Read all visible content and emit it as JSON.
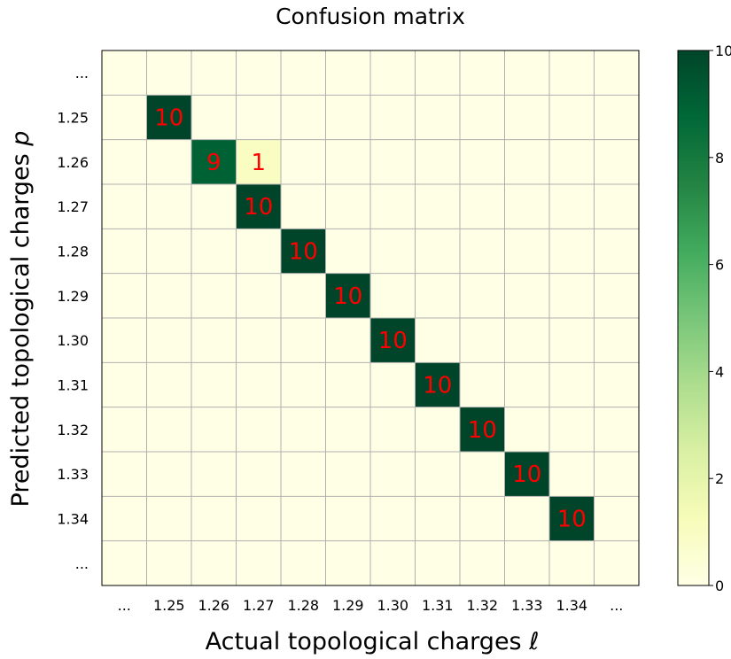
{
  "chart_data": {
    "type": "heatmap",
    "title": "Confusion matrix",
    "xlabel": "Actual topological charges",
    "xlabel_symbol": "ℓ",
    "ylabel": "Predicted topological charges",
    "ylabel_symbol": "p",
    "x_categories": [
      "...",
      "1.25",
      "1.26",
      "1.27",
      "1.28",
      "1.29",
      "1.30",
      "1.31",
      "1.32",
      "1.33",
      "1.34",
      "..."
    ],
    "y_categories": [
      "...",
      "1.25",
      "1.26",
      "1.27",
      "1.28",
      "1.29",
      "1.30",
      "1.31",
      "1.32",
      "1.33",
      "1.34",
      "..."
    ],
    "values": [
      [
        0,
        0,
        0,
        0,
        0,
        0,
        0,
        0,
        0,
        0,
        0,
        0
      ],
      [
        0,
        10,
        0,
        0,
        0,
        0,
        0,
        0,
        0,
        0,
        0,
        0
      ],
      [
        0,
        0,
        9,
        1,
        0,
        0,
        0,
        0,
        0,
        0,
        0,
        0
      ],
      [
        0,
        0,
        0,
        10,
        0,
        0,
        0,
        0,
        0,
        0,
        0,
        0
      ],
      [
        0,
        0,
        0,
        0,
        10,
        0,
        0,
        0,
        0,
        0,
        0,
        0
      ],
      [
        0,
        0,
        0,
        0,
        0,
        10,
        0,
        0,
        0,
        0,
        0,
        0
      ],
      [
        0,
        0,
        0,
        0,
        0,
        0,
        10,
        0,
        0,
        0,
        0,
        0
      ],
      [
        0,
        0,
        0,
        0,
        0,
        0,
        0,
        10,
        0,
        0,
        0,
        0
      ],
      [
        0,
        0,
        0,
        0,
        0,
        0,
        0,
        0,
        10,
        0,
        0,
        0
      ],
      [
        0,
        0,
        0,
        0,
        0,
        0,
        0,
        0,
        0,
        10,
        0,
        0
      ],
      [
        0,
        0,
        0,
        0,
        0,
        0,
        0,
        0,
        0,
        0,
        10,
        0
      ],
      [
        0,
        0,
        0,
        0,
        0,
        0,
        0,
        0,
        0,
        0,
        0,
        0
      ]
    ],
    "colorbar": {
      "min": 0,
      "max": 10,
      "ticks": [
        "0",
        "2",
        "4",
        "6",
        "8",
        "10"
      ],
      "colormap": "YlGn",
      "color_stops": [
        "#ffffe5",
        "#f7fcb9",
        "#d9f0a3",
        "#addd8e",
        "#78c679",
        "#41ab5d",
        "#238443",
        "#006837",
        "#004529"
      ]
    },
    "grid": true,
    "annotation_color": "#ff0000",
    "grid_color": "#b0b0b0"
  }
}
